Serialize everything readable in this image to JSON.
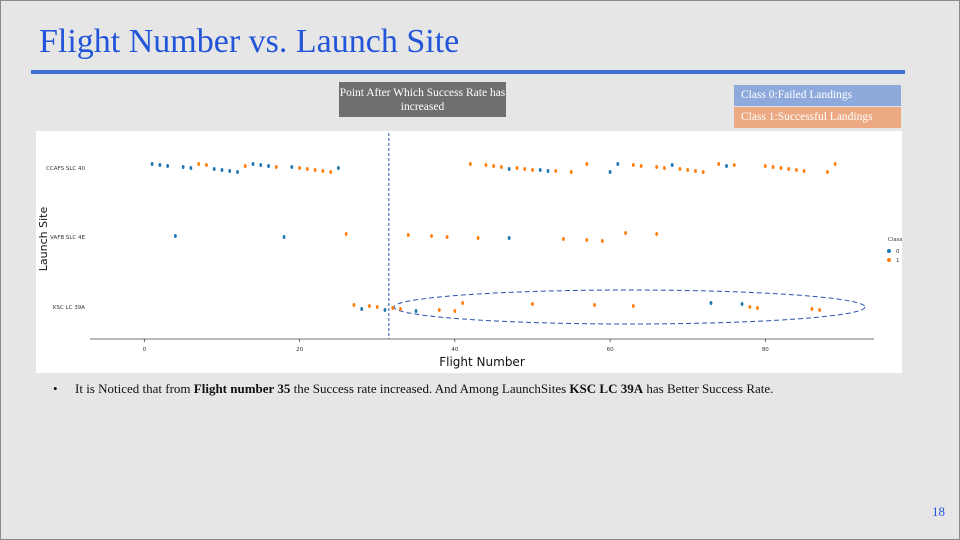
{
  "slide": {
    "title": "Flight Number vs. Launch Site",
    "callout": "Point After Which Success Rate has increased",
    "legend_boxes": [
      "Class 0:Failed Landings",
      "Class 1:Successful Landings"
    ],
    "bullet": {
      "p1": "It is Noticed that from ",
      "b1": "Flight number 35",
      "p2": " the Success rate increased. And Among LaunchSites ",
      "b2": "KSC LC 39A",
      "p3": " has Better Success Rate."
    },
    "page_number": "18"
  },
  "chart_data": {
    "type": "scatter",
    "xlabel": "Flight Number",
    "ylabel": "Launch Site",
    "categories": [
      "CCAFS SLC 40",
      "VAFB SLC 4E",
      "KSC LC 39A"
    ],
    "xlim": [
      -7,
      94
    ],
    "xticks": [
      0,
      20,
      40,
      60,
      80
    ],
    "legend": {
      "title": "Class",
      "labels": [
        "0",
        "1"
      ],
      "position": "right"
    },
    "colors": {
      "0": "#1f77b4",
      "1": "#ff7f0e"
    },
    "annotation_vline_x": 31.5,
    "highlight_ellipse": {
      "site": "KSC LC 39A",
      "x_range": [
        35,
        90
      ]
    },
    "series": [
      {
        "name": "0",
        "points": [
          [
            1,
            "CCAFS SLC 40"
          ],
          [
            2,
            "CCAFS SLC 40"
          ],
          [
            3,
            "CCAFS SLC 40"
          ],
          [
            5,
            "CCAFS SLC 40"
          ],
          [
            6,
            "CCAFS SLC 40"
          ],
          [
            9,
            "CCAFS SLC 40"
          ],
          [
            10,
            "CCAFS SLC 40"
          ],
          [
            11,
            "CCAFS SLC 40"
          ],
          [
            12,
            "CCAFS SLC 40"
          ],
          [
            14,
            "CCAFS SLC 40"
          ],
          [
            15,
            "CCAFS SLC 40"
          ],
          [
            16,
            "CCAFS SLC 40"
          ],
          [
            19,
            "CCAFS SLC 40"
          ],
          [
            25,
            "CCAFS SLC 40"
          ],
          [
            47,
            "CCAFS SLC 40"
          ],
          [
            51,
            "CCAFS SLC 40"
          ],
          [
            52,
            "CCAFS SLC 40"
          ],
          [
            60,
            "CCAFS SLC 40"
          ],
          [
            61,
            "CCAFS SLC 40"
          ],
          [
            68,
            "CCAFS SLC 40"
          ],
          [
            75,
            "CCAFS SLC 40"
          ],
          [
            4,
            "VAFB SLC 4E"
          ],
          [
            18,
            "VAFB SLC 4E"
          ],
          [
            47,
            "VAFB SLC 4E"
          ],
          [
            28,
            "KSC LC 39A"
          ],
          [
            31,
            "KSC LC 39A"
          ],
          [
            35,
            "KSC LC 39A"
          ],
          [
            73,
            "KSC LC 39A"
          ],
          [
            77,
            "KSC LC 39A"
          ]
        ]
      },
      {
        "name": "1",
        "points": [
          [
            7,
            "CCAFS SLC 40"
          ],
          [
            8,
            "CCAFS SLC 40"
          ],
          [
            13,
            "CCAFS SLC 40"
          ],
          [
            17,
            "CCAFS SLC 40"
          ],
          [
            20,
            "CCAFS SLC 40"
          ],
          [
            21,
            "CCAFS SLC 40"
          ],
          [
            22,
            "CCAFS SLC 40"
          ],
          [
            23,
            "CCAFS SLC 40"
          ],
          [
            24,
            "CCAFS SLC 40"
          ],
          [
            42,
            "CCAFS SLC 40"
          ],
          [
            44,
            "CCAFS SLC 40"
          ],
          [
            45,
            "CCAFS SLC 40"
          ],
          [
            46,
            "CCAFS SLC 40"
          ],
          [
            48,
            "CCAFS SLC 40"
          ],
          [
            49,
            "CCAFS SLC 40"
          ],
          [
            50,
            "CCAFS SLC 40"
          ],
          [
            53,
            "CCAFS SLC 40"
          ],
          [
            55,
            "CCAFS SLC 40"
          ],
          [
            57,
            "CCAFS SLC 40"
          ],
          [
            63,
            "CCAFS SLC 40"
          ],
          [
            64,
            "CCAFS SLC 40"
          ],
          [
            66,
            "CCAFS SLC 40"
          ],
          [
            67,
            "CCAFS SLC 40"
          ],
          [
            69,
            "CCAFS SLC 40"
          ],
          [
            70,
            "CCAFS SLC 40"
          ],
          [
            71,
            "CCAFS SLC 40"
          ],
          [
            72,
            "CCAFS SLC 40"
          ],
          [
            74,
            "CCAFS SLC 40"
          ],
          [
            76,
            "CCAFS SLC 40"
          ],
          [
            80,
            "CCAFS SLC 40"
          ],
          [
            81,
            "CCAFS SLC 40"
          ],
          [
            82,
            "CCAFS SLC 40"
          ],
          [
            83,
            "CCAFS SLC 40"
          ],
          [
            84,
            "CCAFS SLC 40"
          ],
          [
            85,
            "CCAFS SLC 40"
          ],
          [
            88,
            "CCAFS SLC 40"
          ],
          [
            89,
            "CCAFS SLC 40"
          ],
          [
            26,
            "VAFB SLC 4E"
          ],
          [
            34,
            "VAFB SLC 4E"
          ],
          [
            37,
            "VAFB SLC 4E"
          ],
          [
            39,
            "VAFB SLC 4E"
          ],
          [
            43,
            "VAFB SLC 4E"
          ],
          [
            54,
            "VAFB SLC 4E"
          ],
          [
            57,
            "VAFB SLC 4E"
          ],
          [
            59,
            "VAFB SLC 4E"
          ],
          [
            62,
            "VAFB SLC 4E"
          ],
          [
            66,
            "VAFB SLC 4E"
          ],
          [
            27,
            "KSC LC 39A"
          ],
          [
            29,
            "KSC LC 39A"
          ],
          [
            30,
            "KSC LC 39A"
          ],
          [
            32,
            "KSC LC 39A"
          ],
          [
            33,
            "KSC LC 39A"
          ],
          [
            38,
            "KSC LC 39A"
          ],
          [
            40,
            "KSC LC 39A"
          ],
          [
            41,
            "KSC LC 39A"
          ],
          [
            50,
            "KSC LC 39A"
          ],
          [
            58,
            "KSC LC 39A"
          ],
          [
            63,
            "KSC LC 39A"
          ],
          [
            78,
            "KSC LC 39A"
          ],
          [
            79,
            "KSC LC 39A"
          ],
          [
            86,
            "KSC LC 39A"
          ],
          [
            87,
            "KSC LC 39A"
          ]
        ]
      }
    ]
  }
}
